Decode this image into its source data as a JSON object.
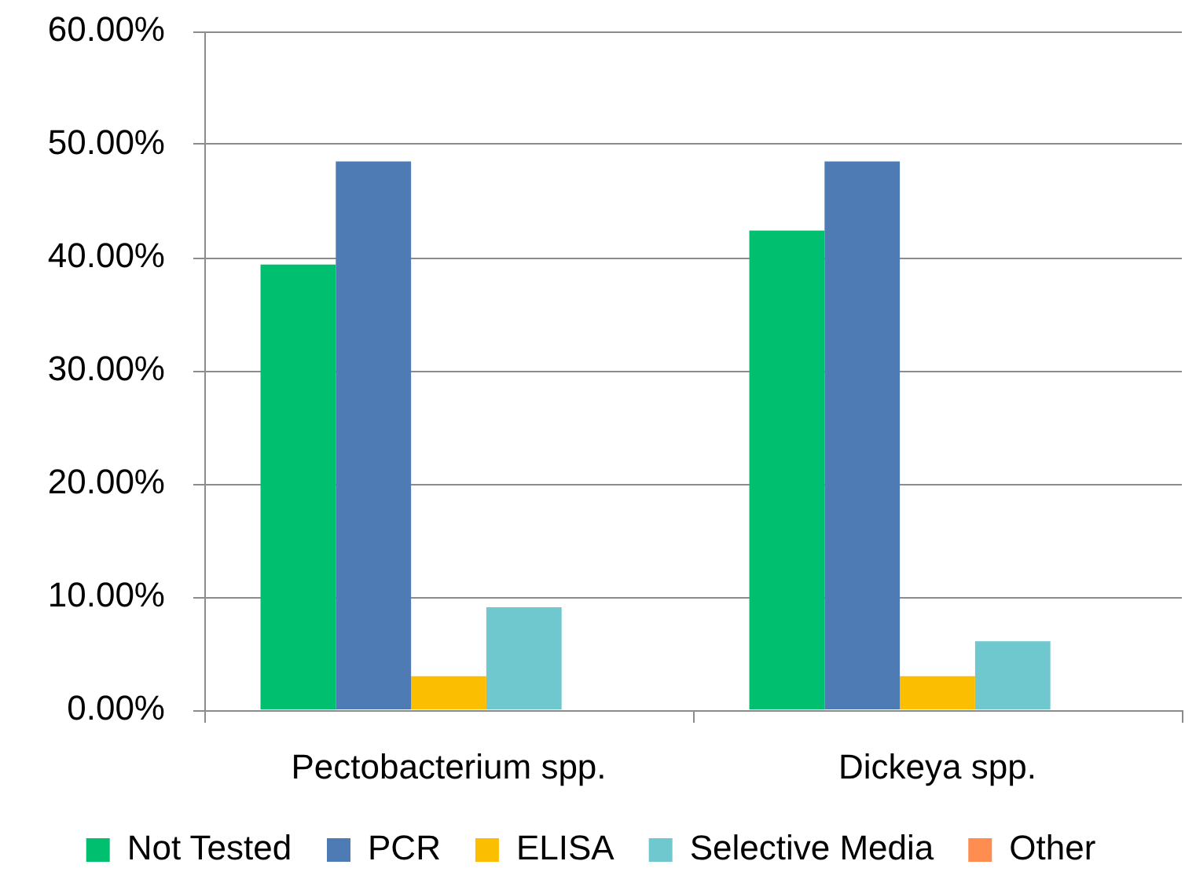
{
  "chart_data": {
    "type": "bar",
    "categories": [
      "Pectobacterium spp.",
      "Dickeya spp."
    ],
    "series": [
      {
        "name": "Not Tested",
        "color": "#00bf6f",
        "values": [
          39.4,
          42.4
        ]
      },
      {
        "name": "PCR",
        "color": "#4f7bb5",
        "values": [
          48.5,
          48.5
        ]
      },
      {
        "name": "ELISA",
        "color": "#fbbe00",
        "values": [
          3.0,
          3.0
        ]
      },
      {
        "name": "Selective Media",
        "color": "#6fc8cd",
        "values": [
          9.1,
          6.1
        ]
      },
      {
        "name": "Other",
        "color": "#ff8d50",
        "values": [
          0,
          0
        ]
      }
    ],
    "ylim": [
      0,
      60
    ],
    "yticks": [
      {
        "value": 0,
        "label": "0.00%"
      },
      {
        "value": 10,
        "label": "10.00%"
      },
      {
        "value": 20,
        "label": "20.00%"
      },
      {
        "value": 30,
        "label": "30.00%"
      },
      {
        "value": 40,
        "label": "40.00%"
      },
      {
        "value": 50,
        "label": "50.00%"
      },
      {
        "value": 60,
        "label": "60.00%"
      }
    ],
    "grid": "y",
    "legend": "bottom"
  }
}
